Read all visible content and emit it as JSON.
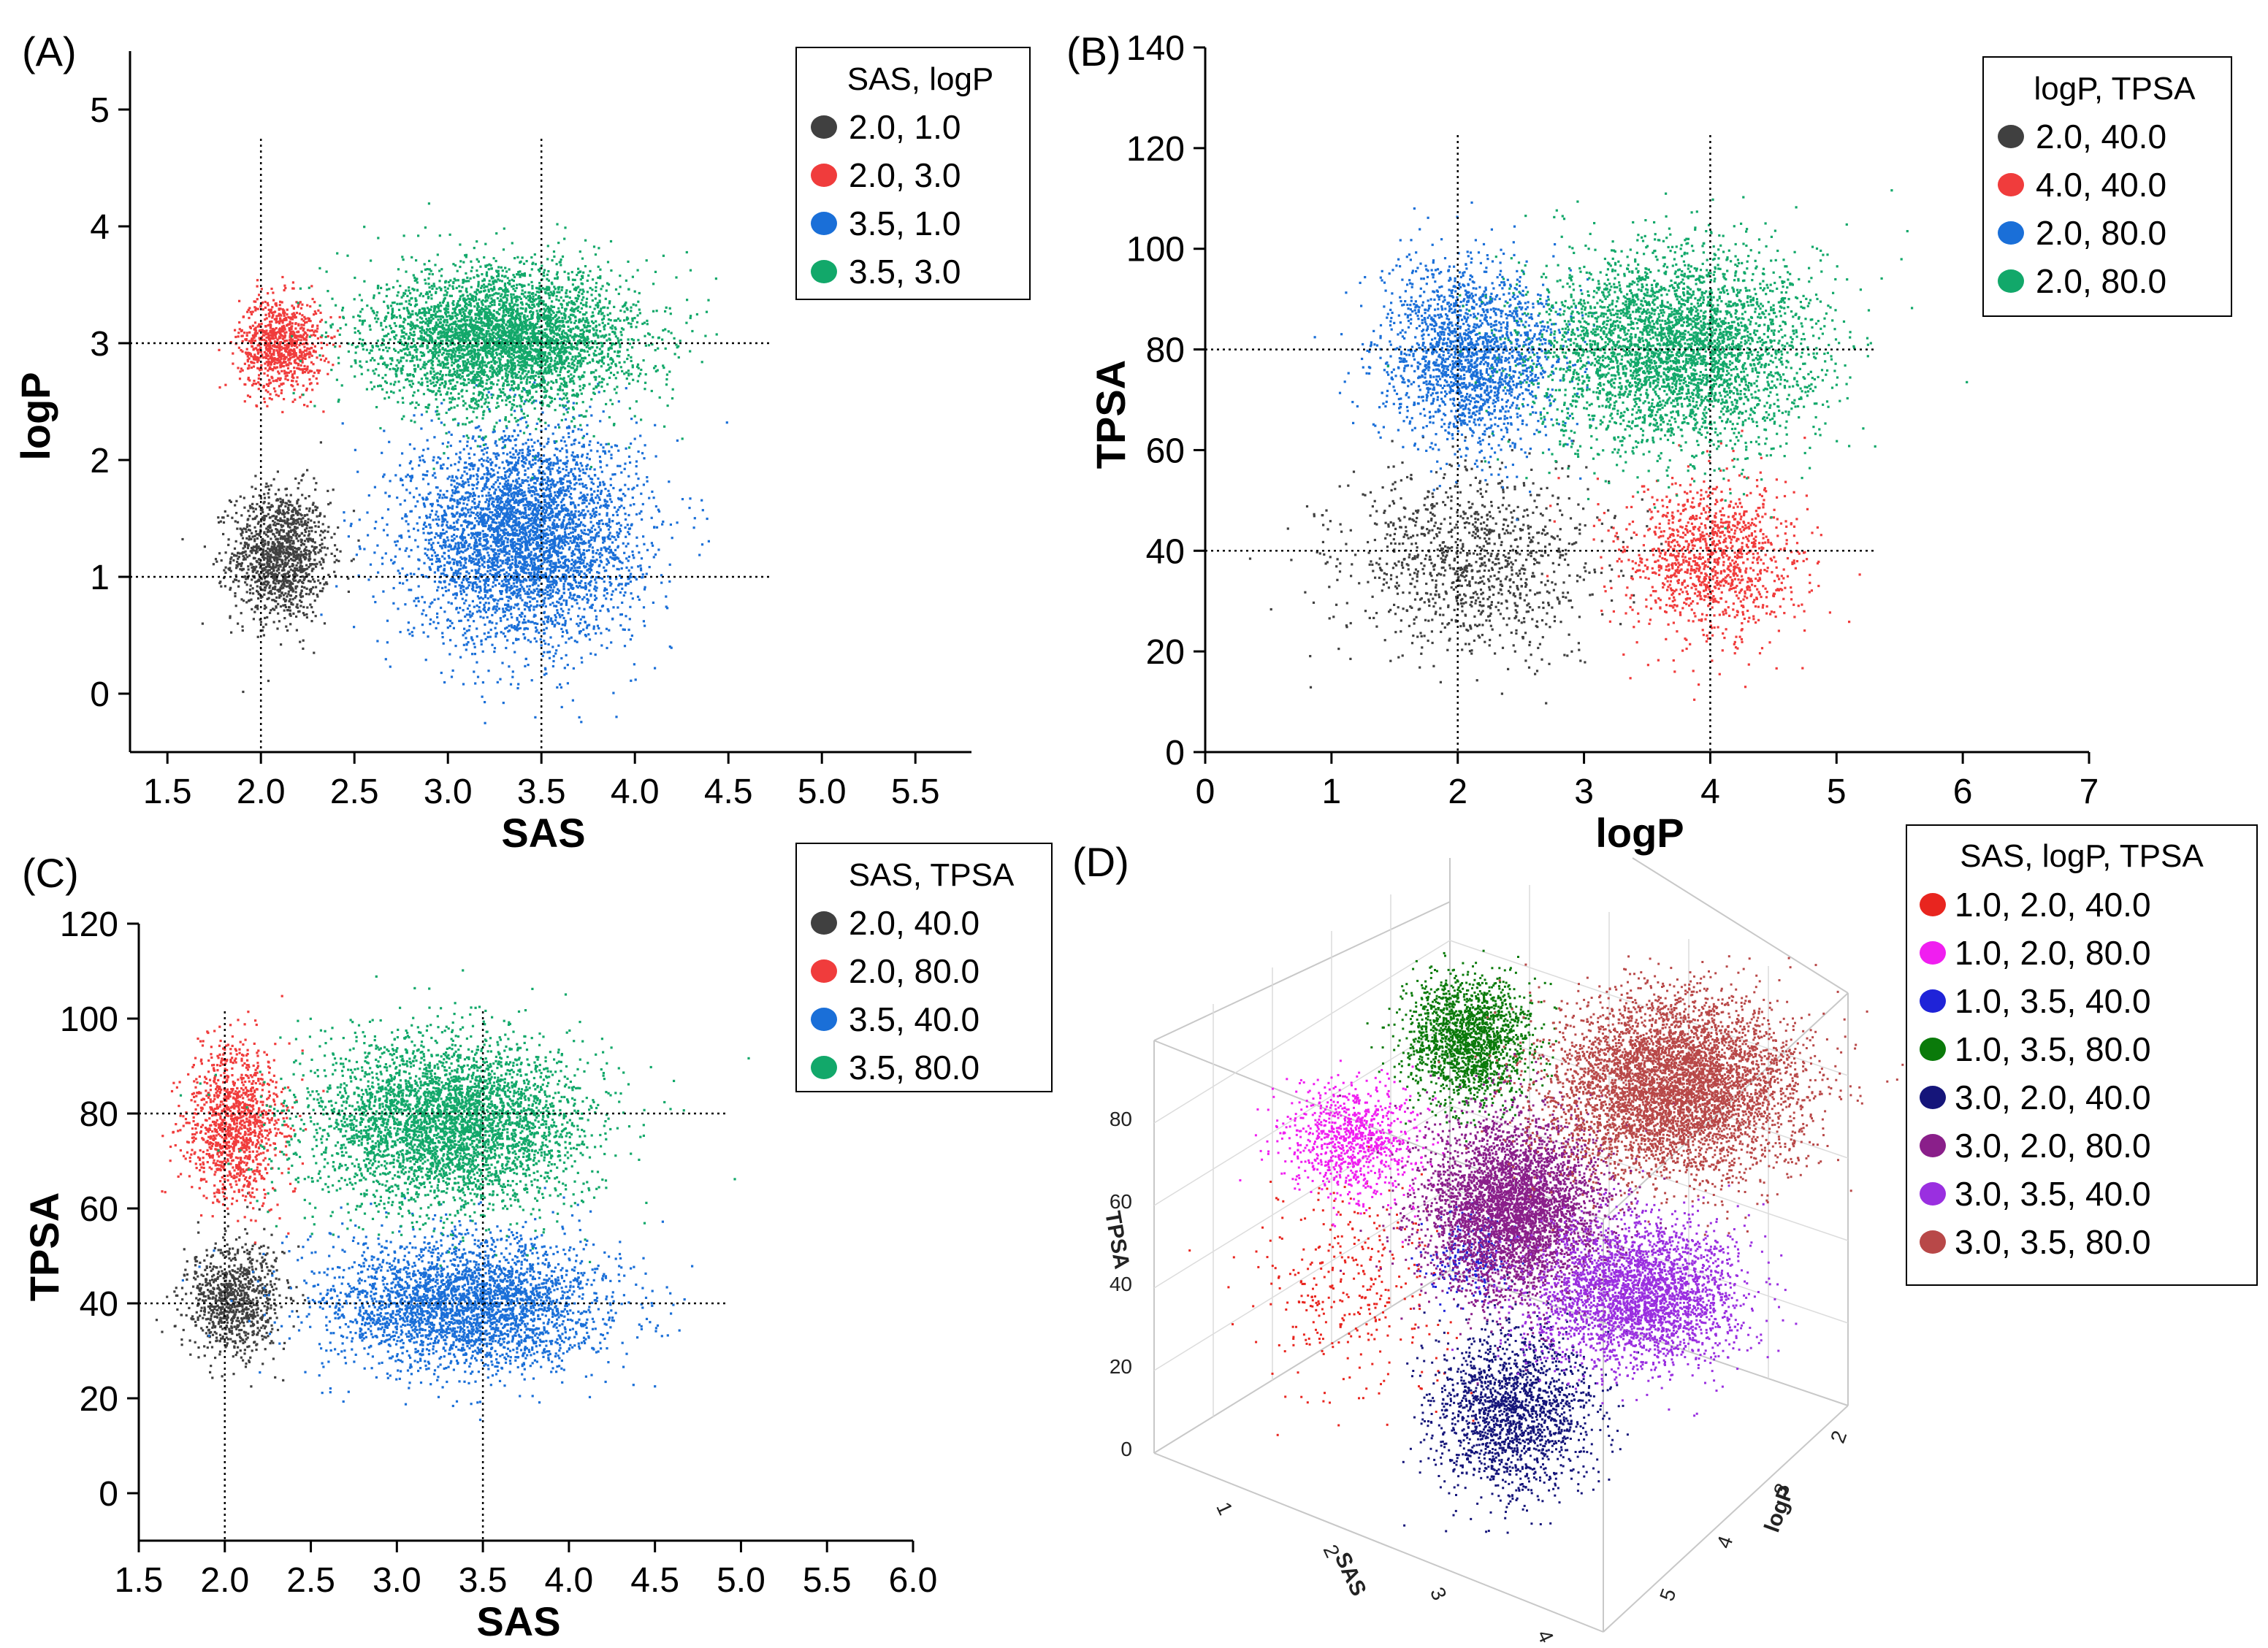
{
  "chart_data": [
    {
      "panel": "(A)",
      "type": "scatter",
      "xlabel": "SAS",
      "ylabel": "logP",
      "xlim": [
        1.3,
        5.8
      ],
      "ylim": [
        -0.5,
        5.5
      ],
      "xticks": [
        "1.5",
        "2.0",
        "2.5",
        "3.0",
        "3.5",
        "4.0",
        "4.5",
        "5.0",
        "5.5"
      ],
      "yticks": [
        "0",
        "1",
        "2",
        "3",
        "4",
        "5"
      ],
      "ref_lines": {
        "x": [
          2.0,
          3.5
        ],
        "y": [
          1.0,
          3.0
        ]
      },
      "legend": {
        "title": "SAS, logP",
        "placement": "top-right"
      },
      "series": [
        {
          "name": "2.0, 1.0",
          "color": "#404040",
          "center": [
            2.1,
            1.2
          ],
          "spread": [
            0.13,
            0.28
          ],
          "n": 1300
        },
        {
          "name": "2.0, 3.0",
          "color": "#f03c3c",
          "center": [
            2.1,
            3.0
          ],
          "spread": [
            0.11,
            0.2
          ],
          "n": 900
        },
        {
          "name": "3.5, 1.0",
          "color": "#1a6fd8",
          "center": [
            3.4,
            1.35
          ],
          "spread": [
            0.3,
            0.45
          ],
          "n": 4200
        },
        {
          "name": "3.5, 3.0",
          "color": "#12a86a",
          "center": [
            3.3,
            3.05
          ],
          "spread": [
            0.35,
            0.3
          ],
          "n": 4200
        }
      ]
    },
    {
      "panel": "(B)",
      "type": "scatter",
      "xlabel": "logP",
      "ylabel": "TPSA",
      "xlim": [
        0,
        7
      ],
      "ylim": [
        0,
        140
      ],
      "xticks": [
        "0",
        "1",
        "2",
        "3",
        "4",
        "5",
        "6",
        "7"
      ],
      "yticks": [
        "0",
        "20",
        "40",
        "60",
        "80",
        "100",
        "120",
        "140"
      ],
      "ref_lines": {
        "x": [
          2.0,
          4.0
        ],
        "y": [
          40.0,
          80.0
        ]
      },
      "legend": {
        "title": "logP, TPSA",
        "placement": "top-right"
      },
      "series": [
        {
          "name": "2.0, 40.0",
          "color": "#404040",
          "center": [
            2.1,
            38
          ],
          "spread": [
            0.5,
            9
          ],
          "n": 1100
        },
        {
          "name": "4.0, 40.0",
          "color": "#f03c3c",
          "center": [
            4.0,
            38
          ],
          "spread": [
            0.35,
            8
          ],
          "n": 1200
        },
        {
          "name": "2.0, 80.0",
          "color": "#1a6fd8",
          "center": [
            2.1,
            79
          ],
          "spread": [
            0.35,
            9
          ],
          "n": 2000
        },
        {
          "name": "2.0, 80.0",
          "color": "#12a86a",
          "center": [
            3.7,
            80
          ],
          "spread": [
            0.55,
            10
          ],
          "n": 3800
        }
      ]
    },
    {
      "panel": "(C)",
      "type": "scatter",
      "xlabel": "SAS",
      "ylabel": "TPSA",
      "xlim": [
        1.5,
        6.0
      ],
      "ylim": [
        -10,
        120
      ],
      "xticks": [
        "1.5",
        "2.0",
        "2.5",
        "3.0",
        "3.5",
        "4.0",
        "4.5",
        "5.0",
        "5.5",
        "6.0"
      ],
      "yticks": [
        "0",
        "20",
        "40",
        "60",
        "80",
        "100",
        "120"
      ],
      "ref_lines": {
        "x": [
          2.0,
          3.5
        ],
        "y": [
          40.0,
          80.0
        ]
      },
      "legend": {
        "title": "SAS, TPSA",
        "placement": "top-right"
      },
      "series": [
        {
          "name": "2.0, 40.0",
          "color": "#404040",
          "center": [
            2.05,
            41
          ],
          "spread": [
            0.14,
            6
          ],
          "n": 900
        },
        {
          "name": "2.0, 80.0",
          "color": "#f03c3c",
          "center": [
            2.05,
            78
          ],
          "spread": [
            0.14,
            8
          ],
          "n": 1200
        },
        {
          "name": "3.5, 40.0",
          "color": "#1a6fd8",
          "center": [
            3.4,
            40
          ],
          "spread": [
            0.4,
            7
          ],
          "n": 3200
        },
        {
          "name": "3.5, 80.0",
          "color": "#12a86a",
          "center": [
            3.3,
            78
          ],
          "spread": [
            0.4,
            9
          ],
          "n": 4000
        }
      ]
    },
    {
      "panel": "(D)",
      "type": "scatter",
      "xlabel": "SAS",
      "ylabel": "logP",
      "zlabel": "TPSA",
      "x_ticks": [
        "1",
        "2",
        "3",
        "4"
      ],
      "y_ticks": [
        "2",
        "3",
        "4",
        "5"
      ],
      "z_ticks": [
        "0",
        "20",
        "40",
        "60",
        "80"
      ],
      "legend": {
        "title": "SAS, logP, TPSA",
        "placement": "top-right"
      },
      "series": [
        {
          "name": "1.0, 2.0, 40.0",
          "color": "#e8251f",
          "n": 350
        },
        {
          "name": "1.0, 2.0, 80.0",
          "color": "#f01ef0",
          "n": 900
        },
        {
          "name": "1.0, 3.5, 40.0",
          "color": "#1f23d8",
          "n": 250
        },
        {
          "name": "1.0, 3.5, 80.0",
          "color": "#0a7a0a",
          "n": 1800
        },
        {
          "name": "3.0, 2.0, 40.0",
          "color": "#15157a",
          "n": 1800
        },
        {
          "name": "3.0, 2.0, 80.0",
          "color": "#8a1f8a",
          "n": 4200
        },
        {
          "name": "3.0, 3.5, 40.0",
          "color": "#9a2fe0",
          "n": 3000
        },
        {
          "name": "3.0, 3.5, 80.0",
          "color": "#b84848",
          "n": 5200
        }
      ]
    }
  ]
}
